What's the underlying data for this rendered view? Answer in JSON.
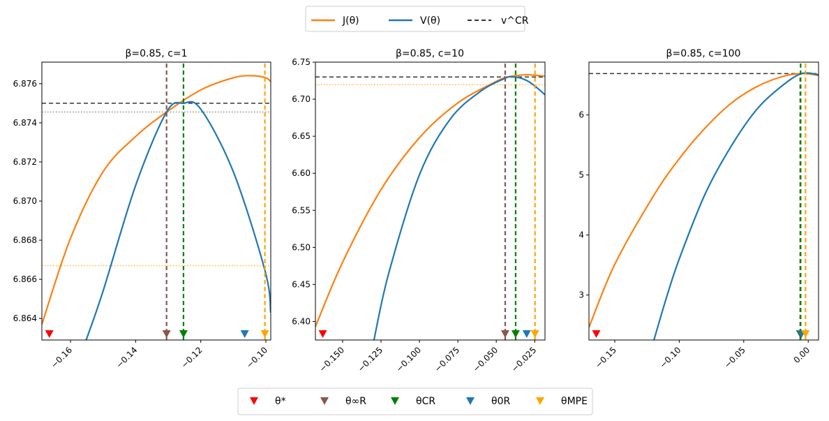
{
  "legend_top": [
    {
      "label": "J(θ)",
      "color": "#ff7f0e",
      "style": "solid"
    },
    {
      "label": "V(θ)",
      "color": "#1f77b4",
      "style": "solid"
    },
    {
      "label": "v^CR",
      "color": "#333333",
      "style": "dashed"
    }
  ],
  "legend_bottom": [
    {
      "label": "θ*",
      "color": "#ff0000"
    },
    {
      "label": "θ∞R",
      "color": "#8c564b"
    },
    {
      "label": "θCR",
      "color": "#008000"
    },
    {
      "label": "θ0R",
      "color": "#1f77b4"
    },
    {
      "label": "θMPE",
      "color": "#ffa500"
    }
  ],
  "chart_data": [
    {
      "type": "line",
      "title": "β=0.85, c=1",
      "xlim": [
        -0.1688,
        -0.0985
      ],
      "ylim": [
        6.8629,
        6.8771
      ],
      "xticks": [
        -0.16,
        -0.14,
        -0.12,
        -0.1
      ],
      "xtick_labels": [
        "−0.16",
        "−0.14",
        "−0.12",
        "−0.10"
      ],
      "yticks": [
        6.864,
        6.866,
        6.868,
        6.87,
        6.872,
        6.874,
        6.876
      ],
      "ytick_labels": [
        "6.864",
        "6.866",
        "6.868",
        "6.870",
        "6.872",
        "6.874",
        "6.876"
      ],
      "J": {
        "x": [
          -0.1688,
          -0.16,
          -0.15,
          -0.14,
          -0.1305,
          -0.12,
          -0.11,
          -0.1043,
          -0.1,
          -0.0985
        ],
        "y": [
          6.8637,
          6.8681,
          6.8715,
          6.8733,
          6.87455,
          6.87568,
          6.8763,
          6.87641,
          6.8763,
          6.8761
        ]
      },
      "V": {
        "x": [
          -0.1552,
          -0.15,
          -0.14,
          -0.1305,
          -0.1253,
          -0.12,
          -0.11,
          -0.1002,
          -0.0985
        ],
        "y": [
          6.8629,
          6.8654,
          6.8708,
          6.87455,
          6.875,
          6.8747,
          6.8715,
          6.8664,
          6.8643
        ]
      },
      "vCR": 6.875,
      "hlines": [
        {
          "y": 6.87455,
          "color": "#8c564b"
        },
        {
          "y": 6.8667,
          "color": "#ffa500"
        }
      ],
      "markers": [
        {
          "name": "θ*",
          "x": -0.1665,
          "color": "#ff0000",
          "vline": false
        },
        {
          "name": "θ∞R",
          "x": -0.1305,
          "color": "#8c564b",
          "vline": true,
          "top": 6.8771
        },
        {
          "name": "θCR",
          "x": -0.1253,
          "color": "#008000",
          "vline": true,
          "top": 6.8771
        },
        {
          "name": "θ0R",
          "x": -0.1065,
          "color": "#1f77b4",
          "vline": false
        },
        {
          "name": "θMPE",
          "x": -0.1003,
          "color": "#ffa500",
          "vline": true,
          "top": 6.8771
        }
      ]
    },
    {
      "type": "line",
      "title": "β=0.85, c=10",
      "xlim": [
        -0.1677,
        -0.0183
      ],
      "ylim": [
        6.375,
        6.75
      ],
      "xticks": [
        -0.15,
        -0.125,
        -0.1,
        -0.075,
        -0.05,
        -0.025
      ],
      "xtick_labels": [
        "−0.150",
        "−0.125",
        "−0.100",
        "−0.075",
        "−0.050",
        "−0.025"
      ],
      "yticks": [
        6.4,
        6.45,
        6.5,
        6.55,
        6.6,
        6.65,
        6.7,
        6.75
      ],
      "ytick_labels": [
        "6.40",
        "6.45",
        "6.50",
        "6.55",
        "6.60",
        "6.65",
        "6.70",
        "6.75"
      ],
      "J": {
        "x": [
          -0.1677,
          -0.15,
          -0.125,
          -0.1,
          -0.075,
          -0.05,
          -0.044,
          -0.04,
          -0.03,
          -0.0183
        ],
        "y": [
          6.393,
          6.48,
          6.578,
          6.648,
          6.695,
          6.724,
          6.729,
          6.731,
          6.733,
          6.731
        ]
      },
      "V": {
        "x": [
          -0.1296,
          -0.12,
          -0.1,
          -0.08,
          -0.06,
          -0.044,
          -0.04,
          -0.035,
          -0.03,
          -0.025,
          -0.0183
        ],
        "y": [
          6.375,
          6.465,
          6.598,
          6.673,
          6.711,
          6.7285,
          6.73,
          6.729,
          6.725,
          6.718,
          6.706
        ]
      },
      "vCR": 6.73,
      "hlines": [
        {
          "y": 6.7195,
          "color": "#ffa500"
        }
      ],
      "markers": [
        {
          "name": "θ*",
          "x": -0.1629,
          "color": "#ff0000",
          "vline": false
        },
        {
          "name": "θ∞R",
          "x": -0.0442,
          "color": "#8c564b",
          "vline": true,
          "top": 6.75
        },
        {
          "name": "θCR",
          "x": -0.0374,
          "color": "#008000",
          "vline": true,
          "top": 6.75
        },
        {
          "name": "θ0R",
          "x": -0.0302,
          "color": "#1f77b4",
          "vline": false
        },
        {
          "name": "θMPE",
          "x": -0.0248,
          "color": "#ffa500",
          "vline": true,
          "top": 6.75
        }
      ]
    },
    {
      "type": "line",
      "title": "β=0.85, c=100",
      "xlim": [
        -0.17,
        0.008
      ],
      "ylim": [
        2.25,
        6.88
      ],
      "xticks": [
        -0.15,
        -0.1,
        -0.05,
        0.0
      ],
      "xtick_labels": [
        "−0.15",
        "−0.10",
        "−0.05",
        "0.00"
      ],
      "yticks": [
        3,
        4,
        5,
        6
      ],
      "ytick_labels": [
        "3",
        "4",
        "5",
        "6"
      ],
      "J": {
        "x": [
          -0.17,
          -0.15,
          -0.12,
          -0.1,
          -0.08,
          -0.06,
          -0.04,
          -0.02,
          -0.005,
          0.008
        ],
        "y": [
          2.46,
          3.51,
          4.65,
          5.27,
          5.78,
          6.19,
          6.47,
          6.64,
          6.69,
          6.66
        ]
      },
      "V": {
        "x": [
          -0.1196,
          -0.11,
          -0.1,
          -0.08,
          -0.06,
          -0.04,
          -0.02,
          -0.005,
          0.008
        ],
        "y": [
          2.25,
          2.95,
          3.6,
          4.68,
          5.47,
          6.09,
          6.49,
          6.69,
          6.67
        ]
      },
      "vCR": 6.69,
      "hlines": [],
      "markers": [
        {
          "name": "θ*",
          "x": -0.1643,
          "color": "#ff0000",
          "vline": false
        },
        {
          "name": "θ∞R",
          "x": -0.0062,
          "color": "#8c564b",
          "vline": true,
          "top": 6.69
        },
        {
          "name": "θCR",
          "x": -0.0059,
          "color": "#008000",
          "vline": true,
          "top": 6.88
        },
        {
          "name": "θ0R",
          "x": -0.0052,
          "color": "#1f77b4",
          "vline": false
        },
        {
          "name": "θMPE",
          "x": -0.0021,
          "color": "#ffa500",
          "vline": true,
          "top": 6.88
        }
      ]
    }
  ]
}
